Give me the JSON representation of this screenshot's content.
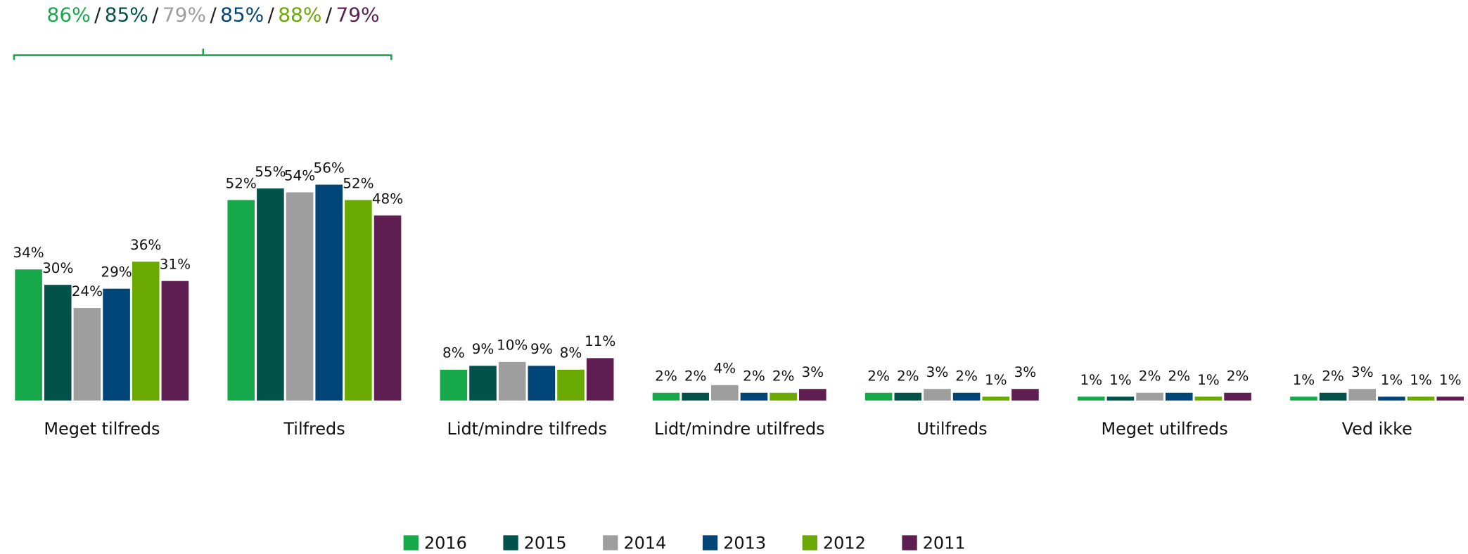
{
  "chart_data": {
    "type": "bar",
    "categories": [
      "Meget tilfreds",
      "Tilfreds",
      "Lidt/mindre tilfreds",
      "Lidt/mindre utilfreds",
      "Utilfreds",
      "Meget utilfreds",
      "Ved ikke"
    ],
    "series": [
      {
        "name": "2016",
        "color": "#17a84a",
        "values": [
          34,
          52,
          8,
          2,
          2,
          1,
          1
        ],
        "value_labels": [
          "34%",
          "52%",
          "8%",
          "2%",
          "2%",
          "1%",
          "1%"
        ]
      },
      {
        "name": "2015",
        "color": "#00524a",
        "values": [
          30,
          55,
          9,
          2,
          2,
          1,
          2
        ],
        "value_labels": [
          "30%",
          "55%",
          "9%",
          "2%",
          "2%",
          "1%",
          "2%"
        ]
      },
      {
        "name": "2014",
        "color": "#9e9e9e",
        "values": [
          24,
          54,
          10,
          4,
          3,
          2,
          3
        ],
        "value_labels": [
          "24%",
          "54%",
          "10%",
          "4%",
          "3%",
          "2%",
          "3%"
        ]
      },
      {
        "name": "2013",
        "color": "#004577",
        "values": [
          29,
          56,
          9,
          2,
          2,
          2,
          1
        ],
        "value_labels": [
          "29%",
          "56%",
          "9%",
          "2%",
          "2%",
          "2%",
          "1%"
        ]
      },
      {
        "name": "2012",
        "color": "#6aaa00",
        "values": [
          36,
          52,
          8,
          2,
          1,
          1,
          1
        ],
        "value_labels": [
          "36%",
          "52%",
          "8%",
          "2%",
          "1%",
          "1%",
          "1%"
        ]
      },
      {
        "name": "2011",
        "color": "#5e1e52",
        "values": [
          31,
          48,
          11,
          3,
          3,
          2,
          1
        ],
        "value_labels": [
          "31%",
          "48%",
          "11%",
          "3%",
          "3%",
          "2%",
          "1%"
        ]
      }
    ],
    "annotation": [
      "86%",
      "85%",
      "79%",
      "85%",
      "88%",
      "79%"
    ],
    "annotation_separator": "/",
    "legend": "bottom"
  }
}
